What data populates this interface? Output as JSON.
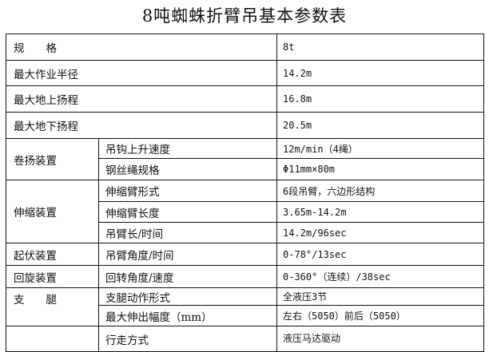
{
  "title": "8吨蜘蛛折臂吊基本参数表",
  "rows": [
    {
      "label": "规　　格",
      "value": "8t"
    },
    {
      "label": "最大作业半径",
      "value": "14.2m"
    },
    {
      "label": "最大地上扬程",
      "value": "16.8m"
    },
    {
      "label": "最大地下扬程",
      "value": "20.5m"
    }
  ],
  "groups": [
    {
      "name": "卷扬装置",
      "items": [
        {
          "label": "吊钩上升速度",
          "value": "12m/min（4绳）"
        },
        {
          "label": "钢丝绳规格",
          "value": "Φ11mm×80m"
        }
      ]
    },
    {
      "name": "伸缩装置",
      "items": [
        {
          "label": "伸缩臂形式",
          "value": "6段吊臂，六边形结构"
        },
        {
          "label": "伸缩臂长度",
          "value": "3.65m-14.2m"
        },
        {
          "label": "吊臂长/时间",
          "value": "14.2m/96sec"
        }
      ]
    },
    {
      "name": "起伏装置",
      "items": [
        {
          "label": "吊臂角度/时间",
          "value": "0-78°/13sec"
        }
      ]
    },
    {
      "name": "回旋装置",
      "items": [
        {
          "label": "回转角度/速度",
          "value": "0-360°（连续）/38sec"
        }
      ]
    },
    {
      "name": "支　　腿",
      "items": [
        {
          "label": "支腿动作形式",
          "value": "全液压3节"
        },
        {
          "label": "最大伸出幅度（mm）",
          "value": "左右（5050）前后（5050）"
        }
      ]
    },
    {
      "name": "",
      "items": [
        {
          "label": "行走方式",
          "value": "液压马达驱动"
        }
      ]
    }
  ]
}
